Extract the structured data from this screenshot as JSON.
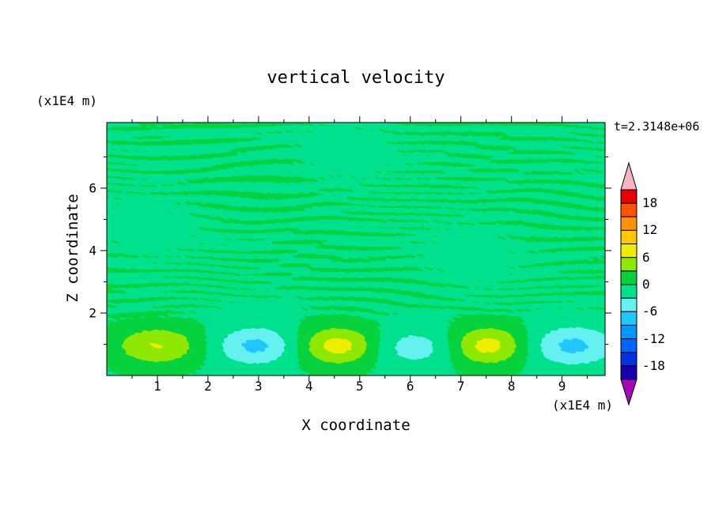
{
  "figure": {
    "title": "vertical velocity",
    "time_label": "t=2.3148e+06",
    "x_axis": {
      "label": "X coordinate",
      "units": "(x1E4 m)"
    },
    "y_axis": {
      "label": "Z coordinate",
      "units": "(x1E4 m)"
    }
  },
  "chart_data": {
    "type": "heatmap",
    "title": "vertical velocity",
    "xlabel": "X coordinate (x1E4 m)",
    "ylabel": "Z coordinate (x1E4 m)",
    "time_annotation": "t=2.3148e+06",
    "xlim": [
      0,
      9.85
    ],
    "ylim": [
      0,
      8.1
    ],
    "x_ticks": [
      1,
      2,
      3,
      4,
      5,
      6,
      7,
      8,
      9
    ],
    "y_ticks": [
      2,
      4,
      6
    ],
    "x_minor_step": 0.5,
    "y_minor_ticks": [
      1,
      3,
      5,
      7
    ],
    "grid": false,
    "legend_position": "right-colorbar",
    "contour_interval": 3,
    "level_min": -21,
    "level_max": 21,
    "colorbar_tick_labels": [
      "18",
      "12",
      "6",
      "0",
      "-6",
      "-12",
      "-18"
    ],
    "palette_low_to_high": [
      "#1802B0",
      "#0330E0",
      "#0064FF",
      "#0098FF",
      "#22C6FF",
      "#66F1F1",
      "#00E18D",
      "#06D23E",
      "#8FE800",
      "#EEEE00",
      "#FFC800",
      "#FF9000",
      "#FF5200",
      "#E60000"
    ],
    "under_arrow_color": "#A705BB",
    "over_arrow_color": "#F3B5C6",
    "background_description": "near-zero (-3..+3) streaky horizontal oscillations aloft; alternating +/- convective cells near the surface (z ~ 1)",
    "background_bias": -0.35,
    "features": {
      "surface_cells": [
        {
          "x": 1.0,
          "z": 0.95,
          "peak": 6.5,
          "rx": 0.85,
          "rz": 0.62
        },
        {
          "x": 2.95,
          "z": 0.95,
          "peak": -6.5,
          "rx": 0.8,
          "rz": 0.6
        },
        {
          "x": 4.6,
          "z": 0.95,
          "peak": 8.0,
          "rx": 0.8,
          "rz": 0.62
        },
        {
          "x": 6.1,
          "z": 0.9,
          "peak": -4.5,
          "rx": 1.0,
          "rz": 0.6
        },
        {
          "x": 7.5,
          "z": 0.95,
          "peak": 8.0,
          "rx": 0.78,
          "rz": 0.62
        },
        {
          "x": 9.2,
          "z": 0.95,
          "peak": -6.5,
          "rx": 0.85,
          "rz": 0.62
        }
      ]
    }
  }
}
